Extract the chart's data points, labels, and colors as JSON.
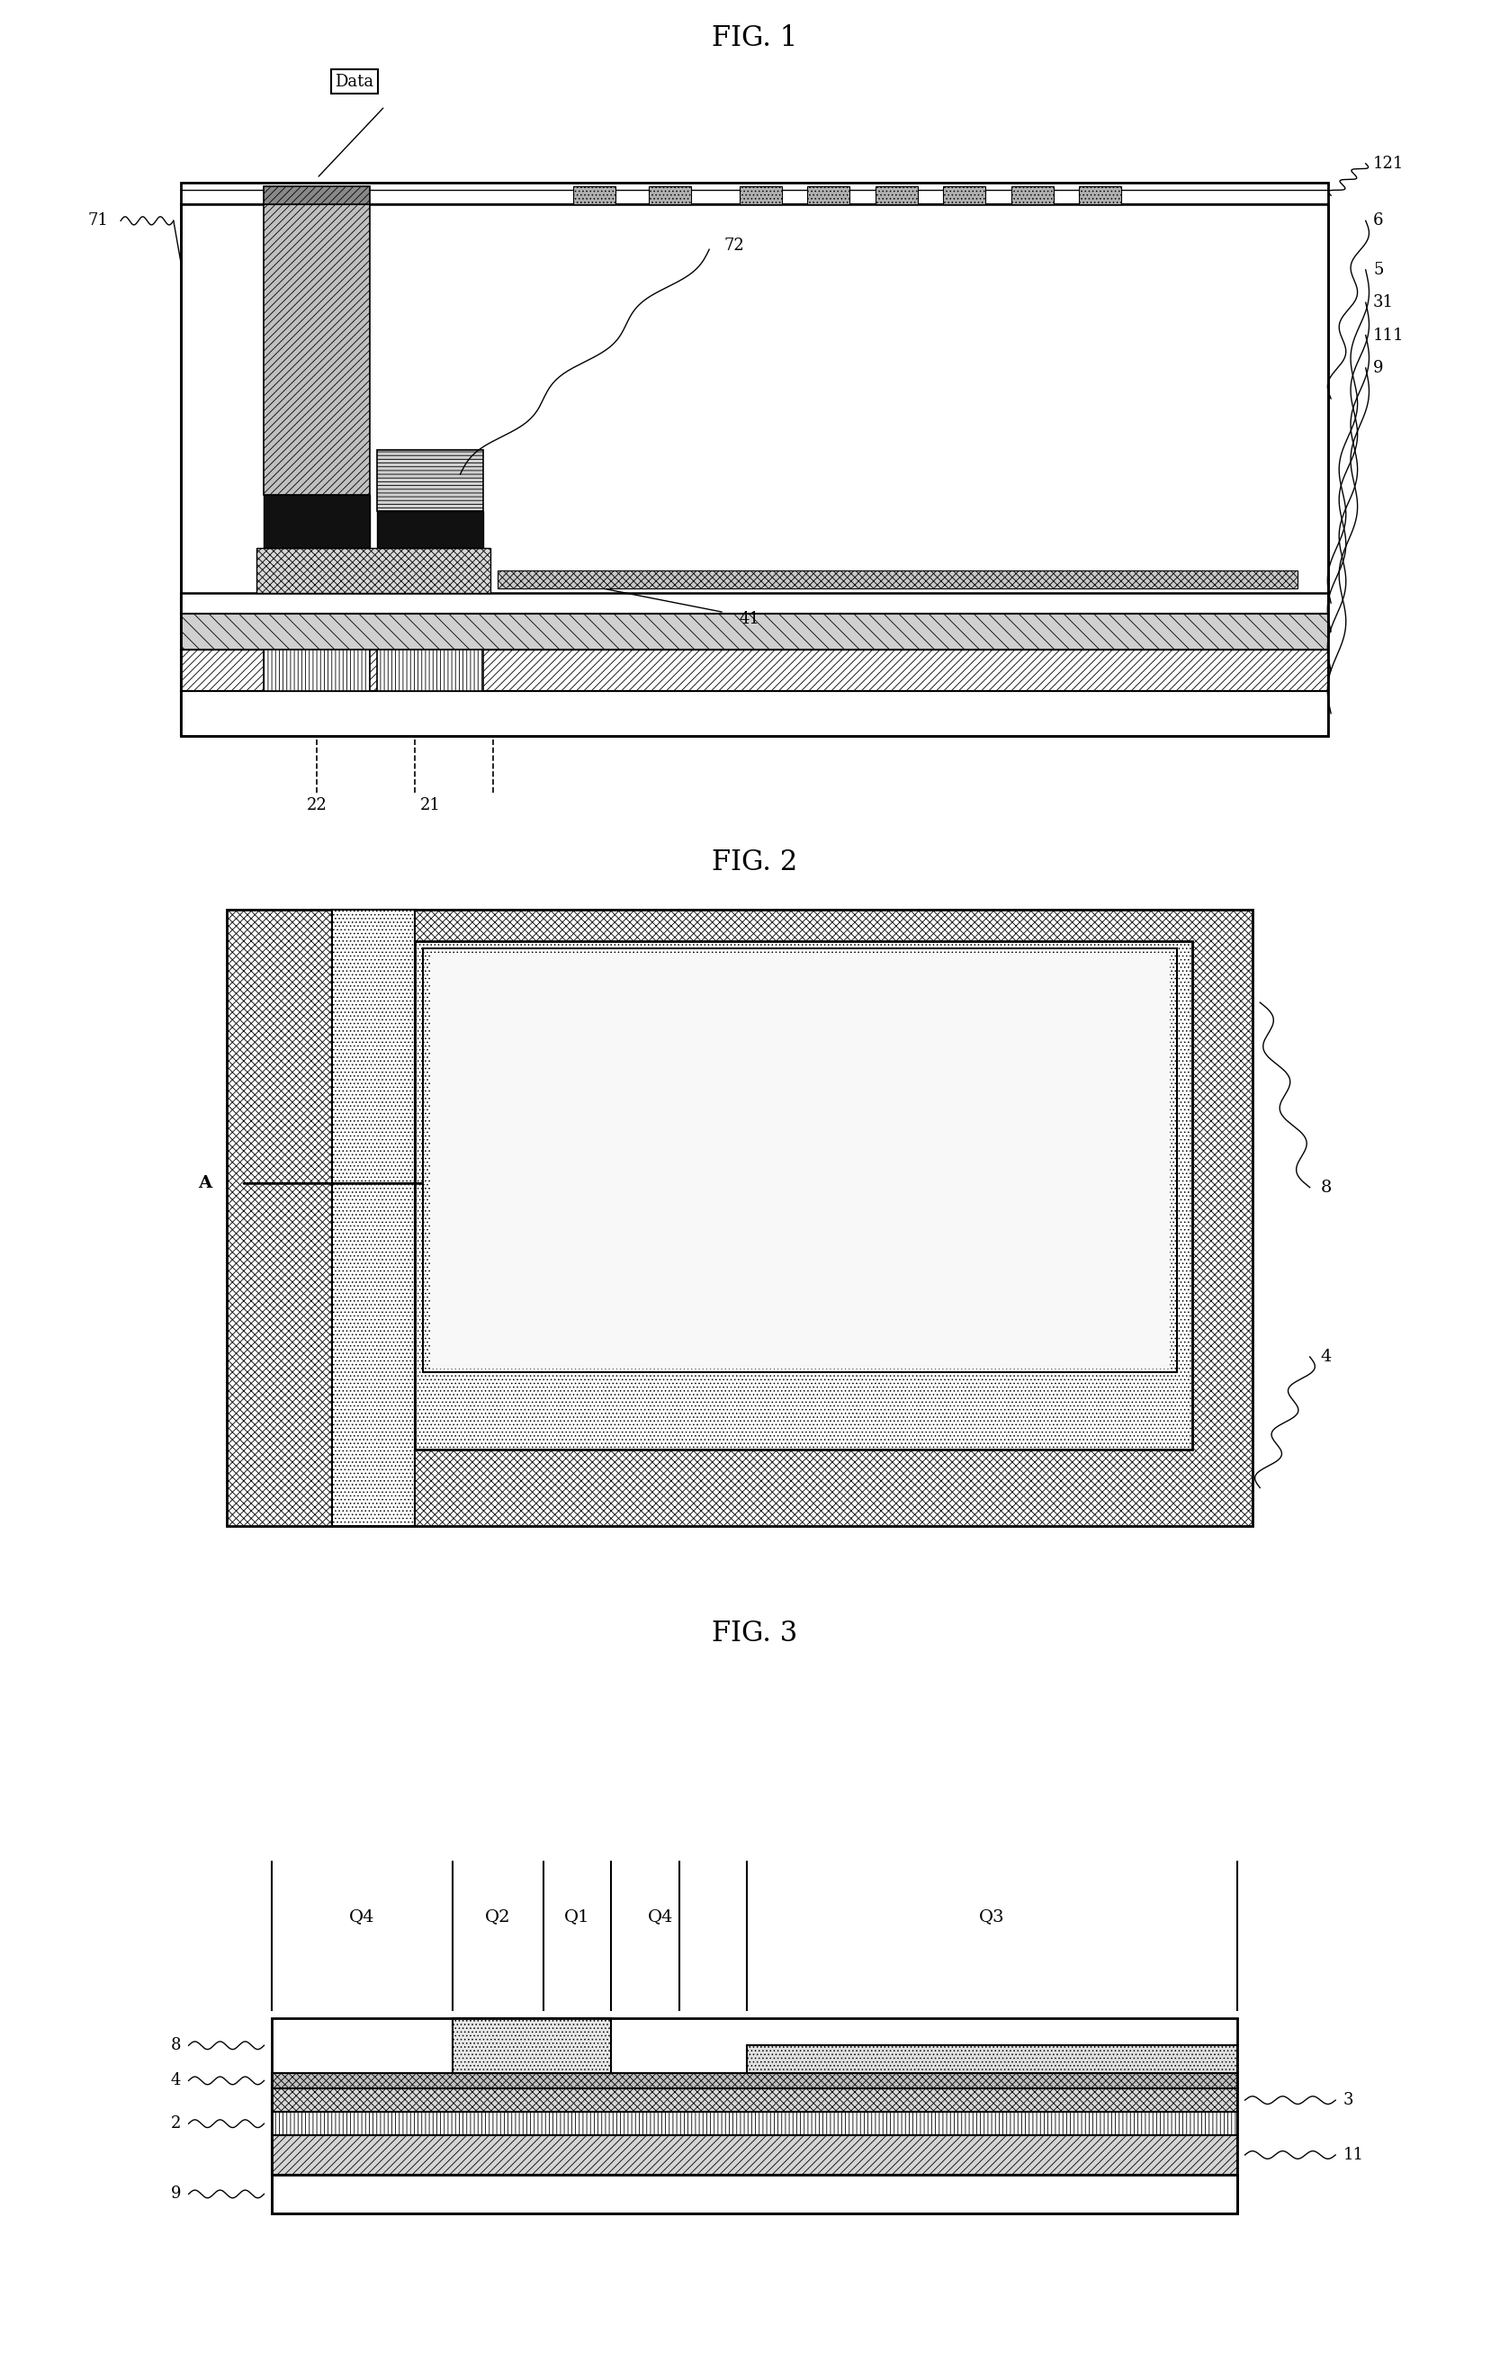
{
  "fig1_title": "FIG. 1",
  "fig2_title": "FIG. 2",
  "fig3_title": "FIG. 3",
  "bg_color": "#ffffff"
}
